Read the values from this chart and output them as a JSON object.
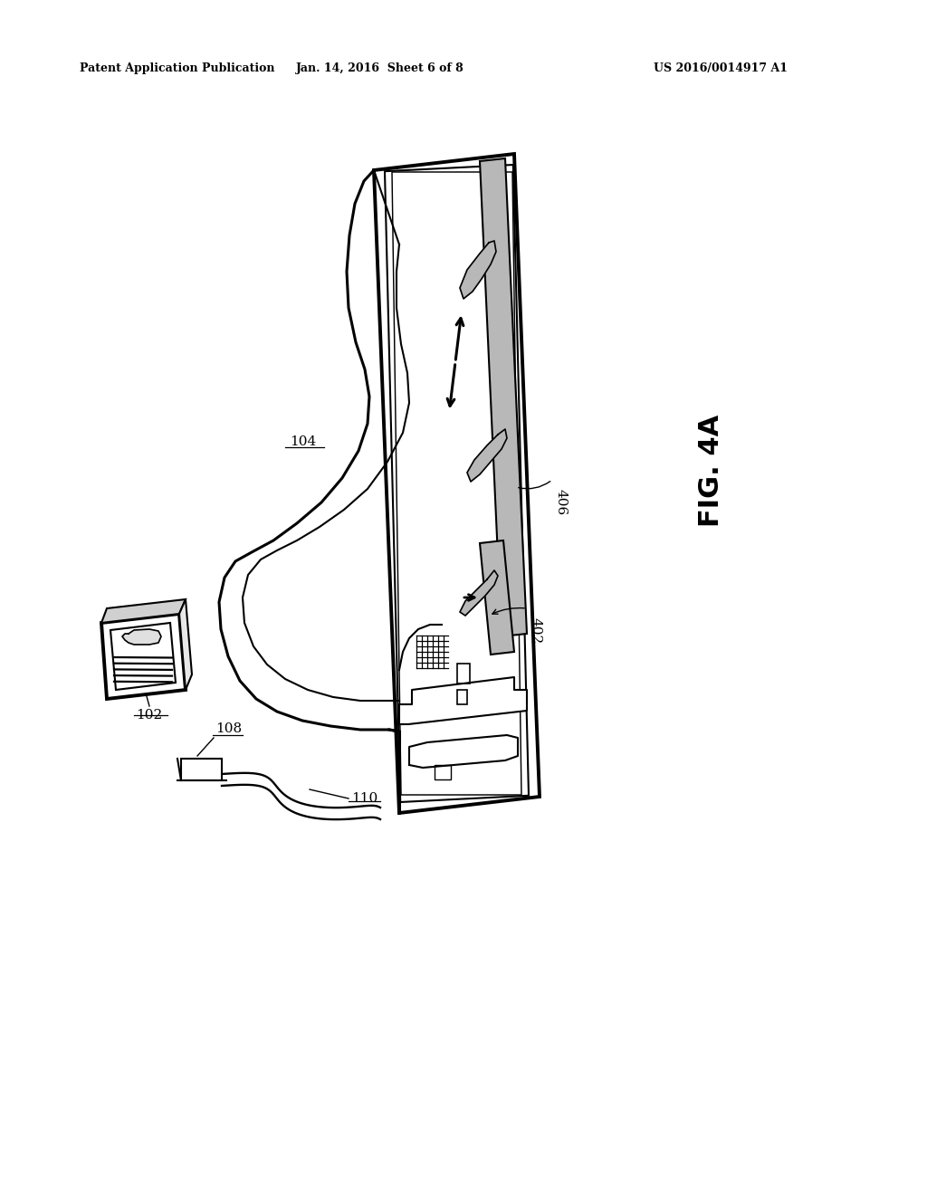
{
  "bg_color": "#ffffff",
  "line_color": "#000000",
  "gray_fill": "#b8b8b8",
  "header_left": "Patent Application Publication",
  "header_mid": "Jan. 14, 2016  Sheet 6 of 8",
  "header_right": "US 2016/0014917 A1",
  "fig_label": "FIG. 4A"
}
